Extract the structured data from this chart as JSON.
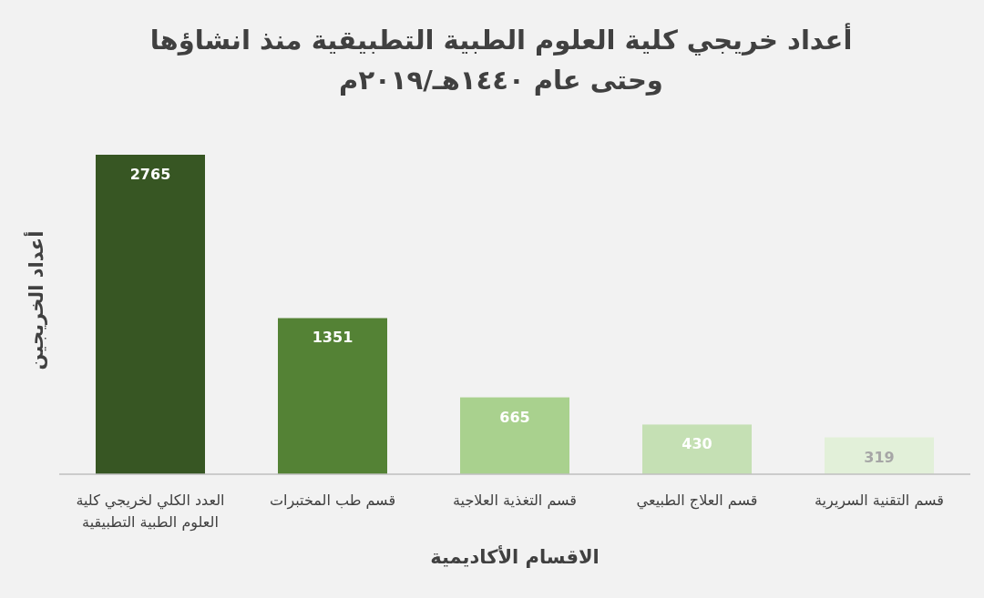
{
  "chart_data": {
    "type": "bar",
    "title": "أعداد خريجي كلية العلوم الطبية التطبيقية منذ انشاؤها وحتى عام ١٤٤٠هـ/٢٠١٩م",
    "xlabel": "الاقسام الأكاديمية",
    "ylabel": "أعداد الخريجين",
    "categories": [
      "العدد الكلي لخريجي كلية العلوم الطبية التطبيقية",
      "قسم طب المختبرات",
      "قسم التغذية العلاجية",
      "قسم العلاج الطبيعي",
      "قسم التقنية السريرية"
    ],
    "values": [
      2765,
      1351,
      665,
      430,
      319
    ],
    "colors": [
      "#375623",
      "#548235",
      "#a9d18e",
      "#c5e0b4",
      "#e2f0d9"
    ],
    "data_labels": true
  }
}
